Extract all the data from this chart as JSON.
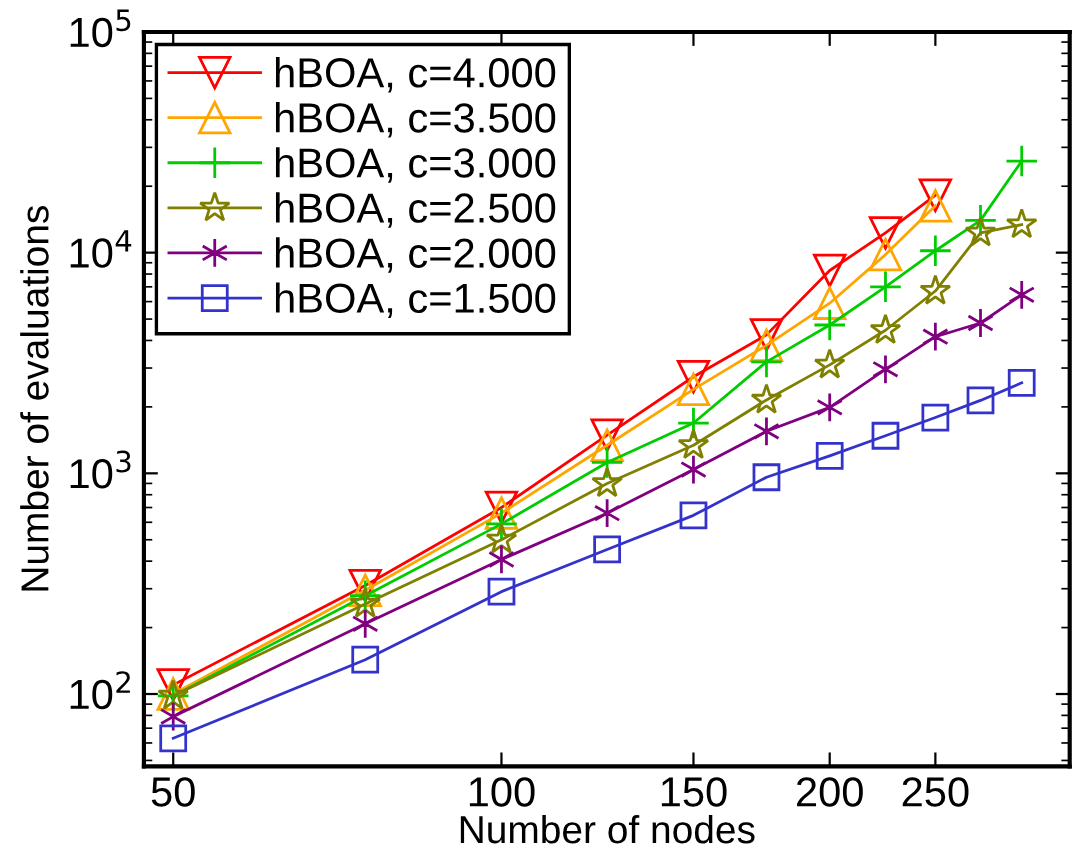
{
  "chart_data": {
    "type": "line",
    "xlabel": "Number of nodes",
    "ylabel": "Number of evaluations",
    "log": "xy",
    "grid": false,
    "legend": "top left",
    "x": [
      50,
      75,
      100,
      125,
      150,
      175,
      200,
      225,
      250,
      275,
      300
    ],
    "xlim": [
      47,
      332
    ],
    "ylim": [
      47,
      100000
    ],
    "xticks": [
      50,
      100,
      150,
      200,
      250
    ],
    "yticks": [
      {
        "value": 100,
        "label": "10$^{2}$"
      },
      {
        "value": 1000,
        "label": "10$^{3}$"
      },
      {
        "value": 10000,
        "label": "10$^{4}$"
      },
      {
        "value": 100000,
        "label": "10$^{5}$"
      }
    ],
    "series": [
      {
        "name": "hBOA, c=4.000",
        "color": "#ff0000",
        "marker": "triangle_down",
        "values": [
          110,
          310,
          700,
          1490,
          2740,
          4240,
          8300,
          12300,
          18200,
          null,
          null
        ]
      },
      {
        "name": "hBOA, c=3.500",
        "color": "#ffa500",
        "marker": "triangle",
        "values": [
          100,
          295,
          660,
          1340,
          2400,
          3800,
          5900,
          9800,
          16300,
          null,
          null
        ]
      },
      {
        "name": "hBOA, c=3.000",
        "color": "#00cc00",
        "marker": "plus",
        "values": [
          98,
          279,
          590,
          1120,
          1690,
          3200,
          4700,
          7000,
          10200,
          14000,
          26000
        ]
      },
      {
        "name": "hBOA, c=2.500",
        "color": "#808000",
        "marker": "star",
        "values": [
          98,
          256,
          500,
          900,
          1340,
          2150,
          3100,
          4450,
          6700,
          12300,
          13400
        ]
      },
      {
        "name": "hBOA, c=2.000",
        "color": "#800080",
        "marker": "cross",
        "values": [
          79,
          208,
          407,
          660,
          1040,
          1550,
          1990,
          2960,
          4160,
          4800,
          6440
        ]
      },
      {
        "name": "hBOA, c=1.500",
        "color": "#3333cc",
        "marker": "square",
        "values": [
          63,
          143,
          291,
          452,
          645,
          960,
          1200,
          1480,
          1790,
          2140,
          2570
        ]
      }
    ]
  }
}
